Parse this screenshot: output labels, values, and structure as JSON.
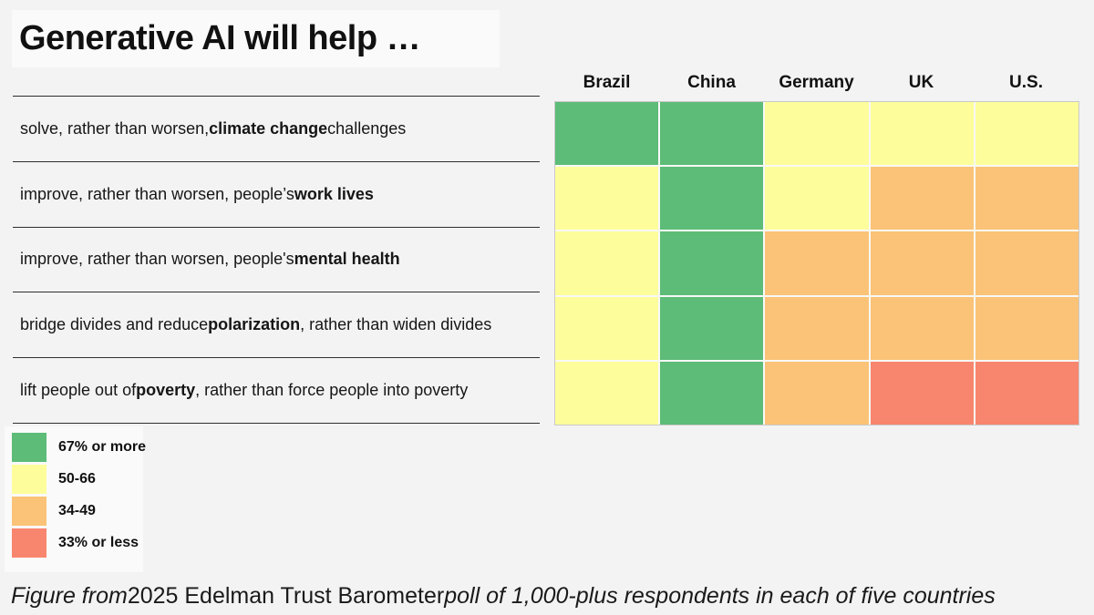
{
  "title": "Generative AI will help …",
  "chart_data": {
    "type": "heatmap",
    "columns": [
      "Brazil",
      "China",
      "Germany",
      "UK",
      "U.S."
    ],
    "rows": [
      {
        "label_segments": [
          {
            "t": "solve, rather than worsen, ",
            "b": false
          },
          {
            "t": "climate change",
            "b": true
          },
          {
            "t": " challenges",
            "b": false
          }
        ],
        "values": [
          "67_or_more",
          "67_or_more",
          "50_66",
          "50_66",
          "50_66"
        ]
      },
      {
        "label_segments": [
          {
            "t": "improve, rather than worsen, people’s ",
            "b": false
          },
          {
            "t": "work lives",
            "b": true
          }
        ],
        "values": [
          "50_66",
          "67_or_more",
          "50_66",
          "34_49",
          "34_49"
        ]
      },
      {
        "label_segments": [
          {
            "t": "improve, rather than worsen, people's ",
            "b": false
          },
          {
            "t": "mental health",
            "b": true
          }
        ],
        "values": [
          "50_66",
          "67_or_more",
          "34_49",
          "34_49",
          "34_49"
        ]
      },
      {
        "label_segments": [
          {
            "t": "bridge divides and reduce ",
            "b": false
          },
          {
            "t": "polarization",
            "b": true
          },
          {
            "t": ", rather than widen divides",
            "b": false
          }
        ],
        "values": [
          "50_66",
          "67_or_more",
          "34_49",
          "34_49",
          "34_49"
        ]
      },
      {
        "label_segments": [
          {
            "t": "lift people out of ",
            "b": false
          },
          {
            "t": "poverty",
            "b": true
          },
          {
            "t": ", rather than force people into poverty",
            "b": false
          }
        ],
        "values": [
          "50_66",
          "67_or_more",
          "34_49",
          "33_or_less",
          "33_or_less"
        ]
      }
    ],
    "bands": [
      {
        "key": "67_or_more",
        "label": "67% or more",
        "color": "#5dbc77"
      },
      {
        "key": "50_66",
        "label": "50-66",
        "color": "#fdfe9b"
      },
      {
        "key": "34_49",
        "label": "34-49",
        "color": "#fac377"
      },
      {
        "key": "33_or_less",
        "label": "33% or less",
        "color": "#f8866e"
      }
    ],
    "legend_position": "bottom-left",
    "grid": "on"
  },
  "caption": {
    "segments": [
      {
        "t": "Figure from ",
        "i": true
      },
      {
        "t": "2025 Edelman Trust Barometer",
        "i": false
      },
      {
        "t": " poll of 1,000-plus respondents in each of five countries",
        "i": true
      }
    ]
  }
}
